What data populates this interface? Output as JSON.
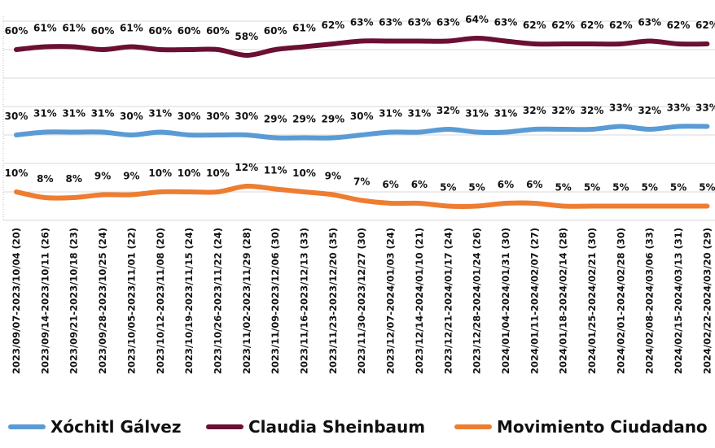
{
  "chart_data": {
    "type": "line",
    "title": "",
    "xlabel": "",
    "ylabel": "",
    "ylim": [
      0,
      70
    ],
    "grid": true,
    "legend_position": "bottom",
    "categories": [
      "2023/09/07-2023/10/04 (20)",
      "2023/09/14-2023/10/11 (26)",
      "2023/09/21-2023/10/18 (23)",
      "2023/09/28-2023/10/25 (24)",
      "2023/10/05-2023/11/01 (22)",
      "2023/10/12-2023/11/08 (20)",
      "2023/10/19-2023/11/15 (24)",
      "2023/10/26-2023/11/22 (24)",
      "2023/11/02-2023/11/29 (28)",
      "2023/11/09-2023/12/06 (30)",
      "2023/11/16-2023/12/13 (33)",
      "2023/11/23-2023/12/20 (35)",
      "2023/11/30-2023/12/27 (30)",
      "2023/12/07-2024/01/03 (24)",
      "2023/12/14-2024/01/10 (21)",
      "2023/12/21-2024/01/17 (24)",
      "2023/12/28-2024/01/24 (26)",
      "2024/01/04-2024/01/31 (30)",
      "2024/01/11-2024/02/07 (27)",
      "2024/01/18-2024/02/14 (28)",
      "2024/01/25-2024/02/21 (30)",
      "2024/02/01-2024/02/28 (30)",
      "2024/02/08-2024/03/06 (33)",
      "2024/02/15-2024/03/13 (31)",
      "2024/02/22-2024/03/20 (29)"
    ],
    "series": [
      {
        "name": "Xóchitl Gálvez",
        "color": "#5b9bd5",
        "values": [
          30,
          31,
          31,
          31,
          30,
          31,
          30,
          30,
          30,
          29,
          29,
          29,
          30,
          31,
          31,
          32,
          31,
          31,
          32,
          32,
          32,
          33,
          32,
          33,
          33
        ]
      },
      {
        "name": "Claudia Sheinbaum",
        "color": "#6b0f33",
        "values": [
          60,
          61,
          61,
          60,
          61,
          60,
          60,
          60,
          58,
          60,
          61,
          62,
          63,
          63,
          63,
          63,
          64,
          63,
          62,
          62,
          62,
          62,
          63,
          62,
          62
        ]
      },
      {
        "name": "Movimiento Ciudadano",
        "color": "#ed7d31",
        "values": [
          10,
          8,
          8,
          9,
          9,
          10,
          10,
          10,
          12,
          11,
          10,
          9,
          7,
          6,
          6,
          5,
          5,
          6,
          6,
          5,
          5,
          5,
          5,
          5,
          5
        ]
      }
    ],
    "data_label_suffix": "%"
  }
}
